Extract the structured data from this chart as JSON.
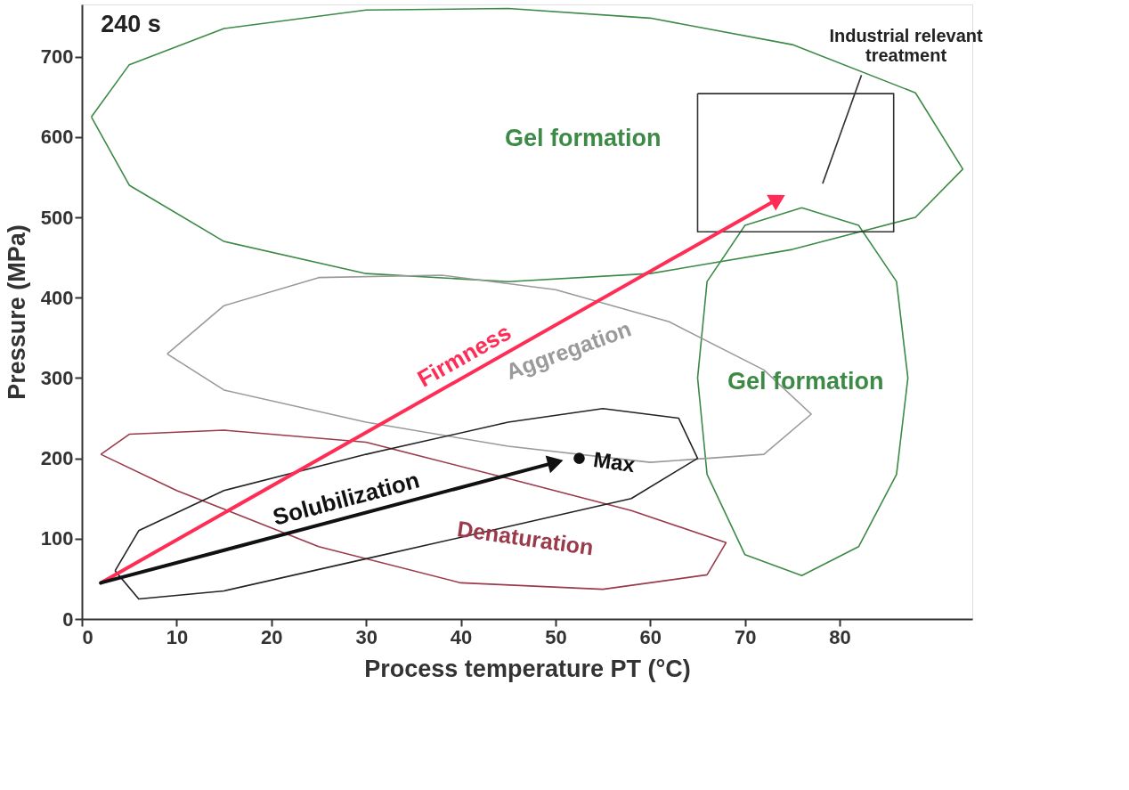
{
  "chart_data": {
    "type": "line",
    "xlabel": "Process temperature PT (°C)",
    "ylabel": "Pressure (MPa)",
    "xlim": [
      0,
      94
    ],
    "ylim": [
      0,
      765
    ],
    "xticks": [
      0,
      10,
      20,
      30,
      40,
      50,
      60,
      70,
      80
    ],
    "yticks": [
      0,
      100,
      200,
      300,
      400,
      500,
      600,
      700
    ],
    "grid": false,
    "series": [
      {
        "name": "Firmness",
        "color": "#ff2d55",
        "marker": "triangle",
        "x": [
          2,
          73.5
        ],
        "values": [
          45,
          523
        ]
      },
      {
        "name": "Solubilization",
        "color": "#111111",
        "marker": "triangle",
        "x": [
          2,
          50
        ],
        "values": [
          45,
          195
        ]
      },
      {
        "name": "Max",
        "type": "scatter",
        "color": "#111111",
        "marker": "circle",
        "x": [
          52.5
        ],
        "values": [
          200
        ]
      }
    ],
    "annotations": [
      "240 s",
      "Industrial relevant treatment",
      "Gel formation",
      "Gel formation",
      "Aggregation",
      "Denaturation"
    ]
  }
}
